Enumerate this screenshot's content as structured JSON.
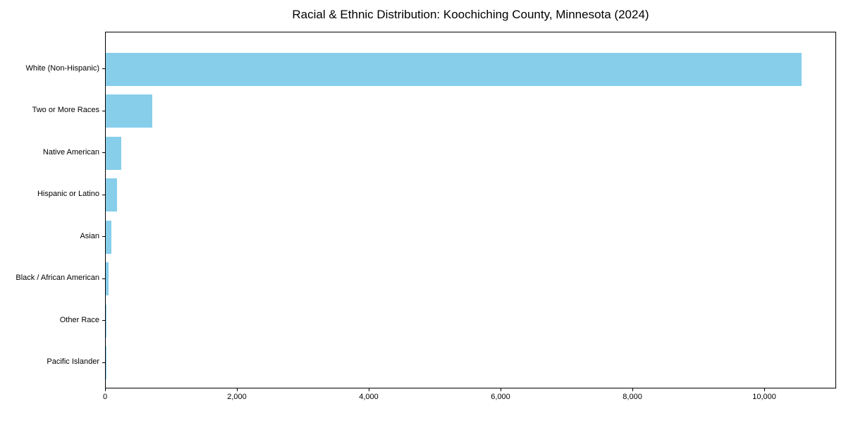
{
  "chart_data": {
    "type": "bar",
    "orientation": "horizontal",
    "title": "Racial & Ethnic Distribution: Koochiching County, Minnesota (2024)",
    "categories": [
      "White (Non-Hispanic)",
      "Two or More Races",
      "Native American",
      "Hispanic or Latino",
      "Asian",
      "Black / African American",
      "Other Race",
      "Pacific Islander"
    ],
    "values": [
      10550,
      705,
      235,
      170,
      85,
      45,
      12,
      2
    ],
    "xlabel": "",
    "ylabel": "",
    "xlim": [
      0,
      11090
    ],
    "xticks": [
      0,
      2000,
      4000,
      6000,
      8000,
      10000
    ],
    "xtick_labels": [
      "0",
      "2,000",
      "4,000",
      "6,000",
      "8,000",
      "10,000"
    ],
    "bar_color": "#87CEEB",
    "axis_color": "#000000",
    "grid": false,
    "legend": null,
    "categories_order": "top-to-bottom"
  }
}
